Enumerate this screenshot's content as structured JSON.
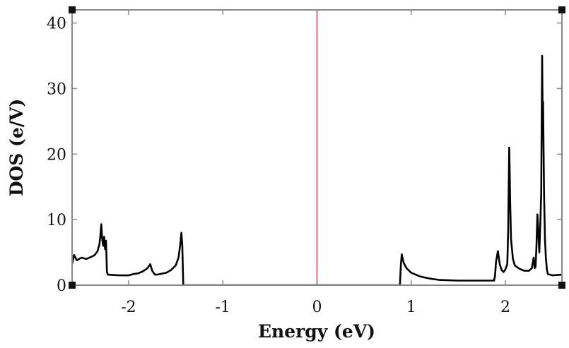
{
  "chart_data": {
    "type": "line",
    "title": "",
    "xlabel": "Energy (eV)",
    "ylabel": "DOS (e/V)",
    "xlim": [
      -2.6,
      2.6
    ],
    "ylim": [
      0,
      42
    ],
    "xticks": [
      "-2",
      "-1",
      "0",
      "1",
      "2"
    ],
    "yticks": [
      "0",
      "10",
      "20",
      "30",
      "40"
    ],
    "grid": false,
    "legend": "none",
    "fermi_level": {
      "x": 0,
      "color": "#e06a78"
    },
    "series": [
      {
        "color": "#000000",
        "points": [
          [
            -2.6,
            3.2
          ],
          [
            -2.58,
            4.6
          ],
          [
            -2.55,
            3.8
          ],
          [
            -2.5,
            4.2
          ],
          [
            -2.45,
            4.0
          ],
          [
            -2.4,
            4.3
          ],
          [
            -2.36,
            4.6
          ],
          [
            -2.33,
            5.2
          ],
          [
            -2.31,
            6.2
          ],
          [
            -2.3,
            7.5
          ],
          [
            -2.29,
            9.3
          ],
          [
            -2.28,
            7.0
          ],
          [
            -2.27,
            6.0
          ],
          [
            -2.26,
            7.4
          ],
          [
            -2.25,
            5.5
          ],
          [
            -2.24,
            6.8
          ],
          [
            -2.23,
            2.0
          ],
          [
            -2.22,
            1.6
          ],
          [
            -2.1,
            1.5
          ],
          [
            -2.0,
            1.5
          ],
          [
            -1.95,
            1.7
          ],
          [
            -1.9,
            1.8
          ],
          [
            -1.85,
            2.1
          ],
          [
            -1.8,
            2.6
          ],
          [
            -1.77,
            3.2
          ],
          [
            -1.75,
            2.2
          ],
          [
            -1.72,
            1.6
          ],
          [
            -1.7,
            1.6
          ],
          [
            -1.6,
            1.9
          ],
          [
            -1.55,
            2.3
          ],
          [
            -1.5,
            3.0
          ],
          [
            -1.47,
            4.2
          ],
          [
            -1.45,
            6.5
          ],
          [
            -1.44,
            8.0
          ],
          [
            -1.43,
            6.0
          ],
          [
            -1.42,
            0.0
          ],
          [
            -0.5,
            0.0
          ],
          [
            0.0,
            0.0
          ],
          [
            0.5,
            0.0
          ],
          [
            0.88,
            0.0
          ],
          [
            0.89,
            3.0
          ],
          [
            0.9,
            4.7
          ],
          [
            0.92,
            3.4
          ],
          [
            0.95,
            2.6
          ],
          [
            1.0,
            1.9
          ],
          [
            1.1,
            1.3
          ],
          [
            1.2,
            1.0
          ],
          [
            1.3,
            0.8
          ],
          [
            1.5,
            0.7
          ],
          [
            1.7,
            0.7
          ],
          [
            1.88,
            0.7
          ],
          [
            1.89,
            1.5
          ],
          [
            1.9,
            3.5
          ],
          [
            1.92,
            5.2
          ],
          [
            1.94,
            3.2
          ],
          [
            1.96,
            2.3
          ],
          [
            1.98,
            2.0
          ],
          [
            2.0,
            2.4
          ],
          [
            2.02,
            3.2
          ],
          [
            2.03,
            8.5
          ],
          [
            2.04,
            21.0
          ],
          [
            2.045,
            18.0
          ],
          [
            2.05,
            13.0
          ],
          [
            2.06,
            7.0
          ],
          [
            2.08,
            4.0
          ],
          [
            2.1,
            3.0
          ],
          [
            2.15,
            2.5
          ],
          [
            2.2,
            2.2
          ],
          [
            2.25,
            2.2
          ],
          [
            2.28,
            2.6
          ],
          [
            2.3,
            4.2
          ],
          [
            2.31,
            2.6
          ],
          [
            2.32,
            2.8
          ],
          [
            2.33,
            6.0
          ],
          [
            2.34,
            10.8
          ],
          [
            2.35,
            8.0
          ],
          [
            2.36,
            5.0
          ],
          [
            2.37,
            9.0
          ],
          [
            2.38,
            14.0
          ],
          [
            2.39,
            35.0
          ],
          [
            2.395,
            26.0
          ],
          [
            2.4,
            28.0
          ],
          [
            2.41,
            14.0
          ],
          [
            2.42,
            7.0
          ],
          [
            2.43,
            4.2
          ],
          [
            2.44,
            2.4
          ],
          [
            2.45,
            1.7
          ],
          [
            2.5,
            1.5
          ],
          [
            2.6,
            1.6
          ]
        ]
      }
    ]
  }
}
